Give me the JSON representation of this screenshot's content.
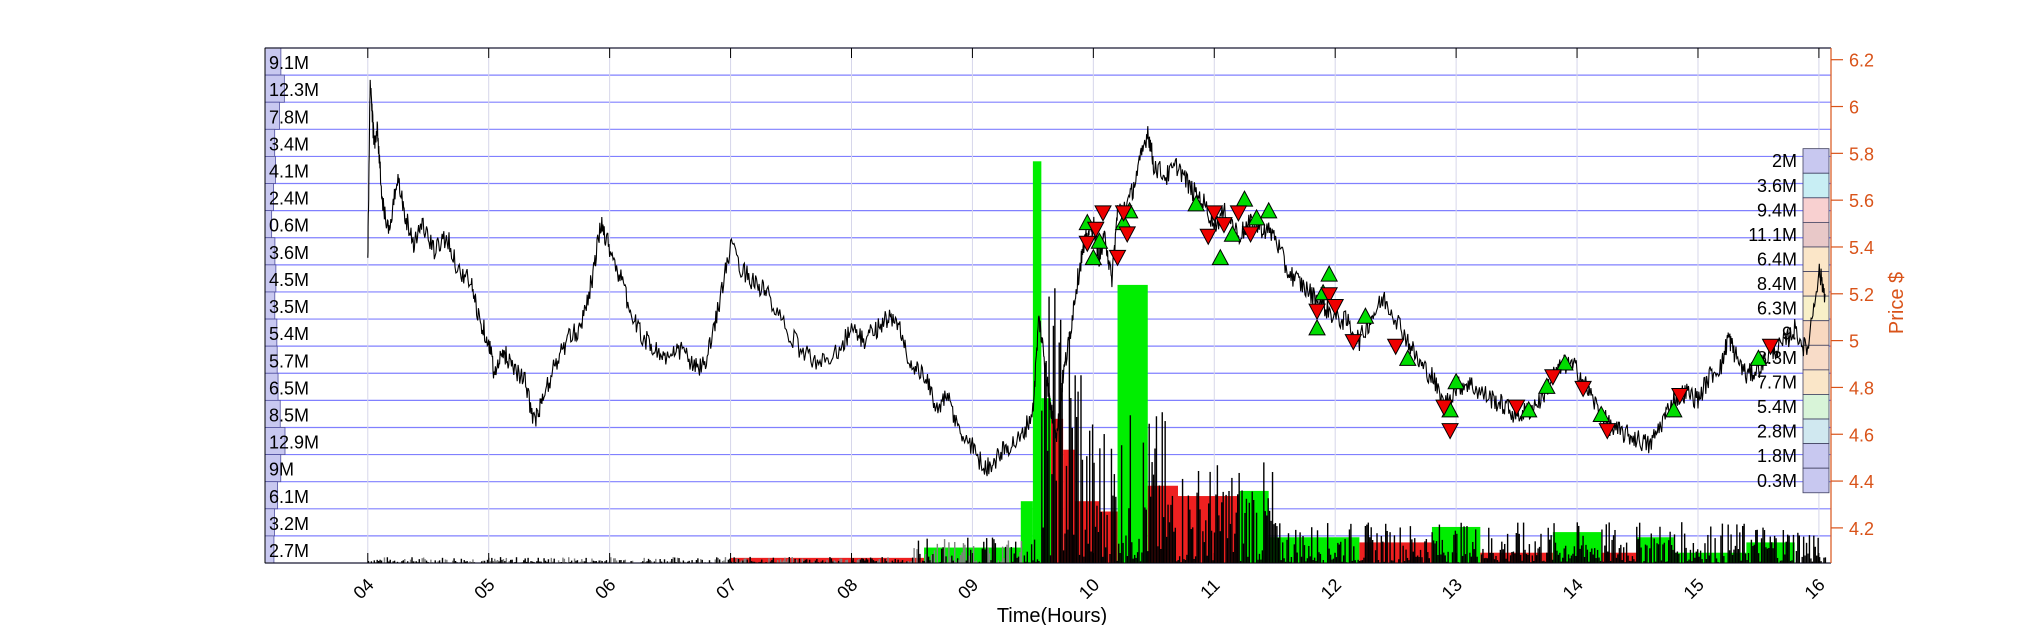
{
  "chart_data": {
    "type": "line",
    "title": "",
    "xlabel": "Time(Hours)",
    "ylabel_right": "Price $",
    "x_tick_labels": [
      "04",
      "05",
      "06",
      "07",
      "08",
      "09",
      "10",
      "11",
      "12",
      "13",
      "14",
      "15",
      "16"
    ],
    "x_range_hours": [
      3.15,
      16.1
    ],
    "y_range_price": [
      4.05,
      6.25
    ],
    "y_ticks_price": [
      "4.2",
      "4.4",
      "4.6",
      "4.8",
      "5",
      "5.2",
      "5.4",
      "5.6",
      "5.8",
      "6",
      "6.2"
    ],
    "grid": "on",
    "colors": {
      "price_line": "#000000",
      "right_axis": "#d95319",
      "grid_blue": "#8080ff",
      "buy_marker": "#00dd00",
      "sell_marker": "#ee0000",
      "volume_green": "#00ee00",
      "volume_red": "#ee2020",
      "volume_black": "#000000",
      "volume_gray": "#808080"
    },
    "price_series": {
      "name": "",
      "points": [
        [
          4.0,
          5.35
        ],
        [
          4.02,
          6.12
        ],
        [
          4.05,
          5.85
        ],
        [
          4.08,
          5.9
        ],
        [
          4.12,
          5.6
        ],
        [
          4.18,
          5.45
        ],
        [
          4.25,
          5.72
        ],
        [
          4.3,
          5.55
        ],
        [
          4.38,
          5.42
        ],
        [
          4.45,
          5.5
        ],
        [
          4.55,
          5.38
        ],
        [
          4.65,
          5.45
        ],
        [
          4.75,
          5.3
        ],
        [
          4.85,
          5.25
        ],
        [
          4.92,
          5.1
        ],
        [
          5.0,
          5.0
        ],
        [
          5.05,
          4.85
        ],
        [
          5.12,
          4.95
        ],
        [
          5.2,
          4.9
        ],
        [
          5.3,
          4.82
        ],
        [
          5.38,
          4.65
        ],
        [
          5.45,
          4.75
        ],
        [
          5.55,
          4.9
        ],
        [
          5.65,
          5.0
        ],
        [
          5.75,
          5.05
        ],
        [
          5.85,
          5.25
        ],
        [
          5.93,
          5.5
        ],
        [
          6.0,
          5.4
        ],
        [
          6.1,
          5.25
        ],
        [
          6.2,
          5.08
        ],
        [
          6.3,
          5.0
        ],
        [
          6.4,
          4.95
        ],
        [
          6.5,
          4.92
        ],
        [
          6.6,
          4.97
        ],
        [
          6.7,
          4.88
        ],
        [
          6.8,
          4.9
        ],
        [
          6.9,
          5.15
        ],
        [
          7.0,
          5.4
        ],
        [
          7.1,
          5.3
        ],
        [
          7.2,
          5.25
        ],
        [
          7.3,
          5.2
        ],
        [
          7.45,
          5.05
        ],
        [
          7.6,
          4.95
        ],
        [
          7.75,
          4.9
        ],
        [
          7.9,
          4.97
        ],
        [
          8.0,
          5.05
        ],
        [
          8.1,
          5.0
        ],
        [
          8.2,
          5.05
        ],
        [
          8.3,
          5.1
        ],
        [
          8.4,
          5.05
        ],
        [
          8.5,
          4.88
        ],
        [
          8.6,
          4.85
        ],
        [
          8.7,
          4.72
        ],
        [
          8.8,
          4.75
        ],
        [
          8.9,
          4.6
        ],
        [
          9.0,
          4.55
        ],
        [
          9.1,
          4.45
        ],
        [
          9.2,
          4.5
        ],
        [
          9.3,
          4.55
        ],
        [
          9.4,
          4.58
        ],
        [
          9.5,
          4.7
        ],
        [
          9.55,
          5.1
        ],
        [
          9.6,
          4.9
        ],
        [
          9.65,
          4.7
        ],
        [
          9.7,
          4.6
        ],
        [
          9.75,
          4.85
        ],
        [
          9.8,
          5.0
        ],
        [
          9.85,
          5.2
        ],
        [
          9.9,
          5.35
        ],
        [
          9.95,
          5.45
        ],
        [
          10.0,
          5.5
        ],
        [
          10.05,
          5.35
        ],
        [
          10.1,
          5.45
        ],
        [
          10.15,
          5.25
        ],
        [
          10.2,
          5.55
        ],
        [
          10.3,
          5.6
        ],
        [
          10.38,
          5.75
        ],
        [
          10.45,
          5.9
        ],
        [
          10.5,
          5.75
        ],
        [
          10.6,
          5.7
        ],
        [
          10.7,
          5.75
        ],
        [
          10.8,
          5.65
        ],
        [
          10.9,
          5.6
        ],
        [
          11.0,
          5.5
        ],
        [
          11.1,
          5.55
        ],
        [
          11.2,
          5.45
        ],
        [
          11.3,
          5.5
        ],
        [
          11.4,
          5.48
        ],
        [
          11.5,
          5.45
        ],
        [
          11.6,
          5.3
        ],
        [
          11.7,
          5.25
        ],
        [
          11.8,
          5.2
        ],
        [
          11.9,
          5.15
        ],
        [
          12.0,
          5.1
        ],
        [
          12.1,
          5.08
        ],
        [
          12.2,
          5.0
        ],
        [
          12.3,
          5.1
        ],
        [
          12.4,
          5.18
        ],
        [
          12.5,
          5.1
        ],
        [
          12.6,
          5.0
        ],
        [
          12.7,
          4.9
        ],
        [
          12.8,
          4.85
        ],
        [
          12.9,
          4.72
        ],
        [
          13.0,
          4.8
        ],
        [
          13.1,
          4.82
        ],
        [
          13.2,
          4.78
        ],
        [
          13.3,
          4.75
        ],
        [
          13.4,
          4.72
        ],
        [
          13.5,
          4.68
        ],
        [
          13.6,
          4.7
        ],
        [
          13.7,
          4.75
        ],
        [
          13.8,
          4.85
        ],
        [
          13.9,
          4.9
        ],
        [
          14.0,
          4.88
        ],
        [
          14.1,
          4.78
        ],
        [
          14.2,
          4.68
        ],
        [
          14.3,
          4.62
        ],
        [
          14.4,
          4.6
        ],
        [
          14.5,
          4.58
        ],
        [
          14.6,
          4.55
        ],
        [
          14.7,
          4.65
        ],
        [
          14.8,
          4.75
        ],
        [
          14.9,
          4.78
        ],
        [
          15.0,
          4.75
        ],
        [
          15.1,
          4.85
        ],
        [
          15.2,
          4.9
        ],
        [
          15.25,
          5.02
        ],
        [
          15.3,
          4.95
        ],
        [
          15.4,
          4.85
        ],
        [
          15.5,
          4.88
        ],
        [
          15.6,
          4.95
        ],
        [
          15.7,
          4.98
        ],
        [
          15.8,
          5.05
        ],
        [
          15.9,
          4.95
        ],
        [
          16.0,
          5.3
        ],
        [
          16.05,
          5.2
        ]
      ]
    },
    "buy_signals": [
      [
        9.95,
        5.5
      ],
      [
        10.0,
        5.35
      ],
      [
        10.05,
        5.42
      ],
      [
        10.25,
        5.5
      ],
      [
        10.3,
        5.55
      ],
      [
        10.85,
        5.58
      ],
      [
        11.05,
        5.35
      ],
      [
        11.15,
        5.45
      ],
      [
        11.25,
        5.6
      ],
      [
        11.35,
        5.52
      ],
      [
        11.45,
        5.55
      ],
      [
        11.85,
        5.05
      ],
      [
        11.9,
        5.2
      ],
      [
        11.95,
        5.28
      ],
      [
        12.25,
        5.1
      ],
      [
        12.6,
        4.92
      ],
      [
        12.95,
        4.7
      ],
      [
        13.0,
        4.82
      ],
      [
        13.6,
        4.7
      ],
      [
        13.75,
        4.8
      ],
      [
        13.9,
        4.9
      ],
      [
        14.2,
        4.68
      ],
      [
        14.8,
        4.7
      ],
      [
        15.5,
        4.92
      ]
    ],
    "sell_signals": [
      [
        9.95,
        5.42
      ],
      [
        10.02,
        5.48
      ],
      [
        10.08,
        5.55
      ],
      [
        10.2,
        5.36
      ],
      [
        10.25,
        5.55
      ],
      [
        10.28,
        5.46
      ],
      [
        10.95,
        5.45
      ],
      [
        11.0,
        5.55
      ],
      [
        11.08,
        5.5
      ],
      [
        11.2,
        5.55
      ],
      [
        11.3,
        5.46
      ],
      [
        11.85,
        5.13
      ],
      [
        11.95,
        5.2
      ],
      [
        12.0,
        5.15
      ],
      [
        12.15,
        5.0
      ],
      [
        12.5,
        4.98
      ],
      [
        12.9,
        4.72
      ],
      [
        12.95,
        4.62
      ],
      [
        13.5,
        4.72
      ],
      [
        13.8,
        4.85
      ],
      [
        14.05,
        4.8
      ],
      [
        14.25,
        4.62
      ],
      [
        14.85,
        4.77
      ],
      [
        15.6,
        4.98
      ]
    ],
    "volume_bars": [
      {
        "x0": 7.0,
        "x1": 8.6,
        "h": 0.01,
        "color": "red"
      },
      {
        "x0": 8.6,
        "x1": 9.4,
        "h": 0.03,
        "color": "green"
      },
      {
        "x0": 9.4,
        "x1": 9.5,
        "h": 0.12,
        "color": "green"
      },
      {
        "x0": 9.5,
        "x1": 9.57,
        "h": 0.78,
        "color": "green"
      },
      {
        "x0": 9.57,
        "x1": 9.65,
        "h": 0.32,
        "color": "green"
      },
      {
        "x0": 9.65,
        "x1": 9.75,
        "h": 0.28,
        "color": "red"
      },
      {
        "x0": 9.75,
        "x1": 9.85,
        "h": 0.22,
        "color": "red"
      },
      {
        "x0": 9.85,
        "x1": 10.05,
        "h": 0.12,
        "color": "red"
      },
      {
        "x0": 10.05,
        "x1": 10.2,
        "h": 0.1,
        "color": "red"
      },
      {
        "x0": 10.2,
        "x1": 10.45,
        "h": 0.54,
        "color": "green"
      },
      {
        "x0": 10.45,
        "x1": 10.7,
        "h": 0.15,
        "color": "red"
      },
      {
        "x0": 10.7,
        "x1": 11.2,
        "h": 0.13,
        "color": "red"
      },
      {
        "x0": 11.2,
        "x1": 11.45,
        "h": 0.14,
        "color": "green"
      },
      {
        "x0": 11.45,
        "x1": 12.2,
        "h": 0.05,
        "color": "green"
      },
      {
        "x0": 12.2,
        "x1": 12.8,
        "h": 0.04,
        "color": "red"
      },
      {
        "x0": 12.8,
        "x1": 13.2,
        "h": 0.07,
        "color": "green"
      },
      {
        "x0": 13.2,
        "x1": 13.8,
        "h": 0.02,
        "color": "red"
      },
      {
        "x0": 13.8,
        "x1": 14.2,
        "h": 0.06,
        "color": "green"
      },
      {
        "x0": 14.2,
        "x1": 14.5,
        "h": 0.02,
        "color": "red"
      },
      {
        "x0": 14.5,
        "x1": 14.8,
        "h": 0.05,
        "color": "green"
      },
      {
        "x0": 14.8,
        "x1": 15.4,
        "h": 0.02,
        "color": "green"
      },
      {
        "x0": 15.4,
        "x1": 15.8,
        "h": 0.04,
        "color": "green"
      }
    ],
    "left_volume_profile": {
      "labels": [
        "9.1M",
        "12.3M",
        "7.8M",
        "3.4M",
        "4.1M",
        "2.4M",
        "0.6M",
        "3.6M",
        "4.5M",
        "3.5M",
        "5.4M",
        "5.7M",
        "6.5M",
        "8.5M",
        "12.9M",
        "9M",
        "6.1M",
        "3.2M",
        "2.7M"
      ],
      "values_millions": [
        9.1,
        12.3,
        7.8,
        3.4,
        4.1,
        2.4,
        0.6,
        3.6,
        4.5,
        3.5,
        5.4,
        5.7,
        6.5,
        8.5,
        12.9,
        9.0,
        6.1,
        3.2,
        2.7
      ]
    },
    "right_volume_profile": {
      "labels": [
        "2M",
        "3.6M",
        "9.4M",
        "11.1M",
        "6.4M",
        "8.4M",
        "6.3M",
        "9.",
        "8.3M",
        "7.7M",
        "5.4M",
        "2.8M",
        "1.8M",
        "0.3M"
      ],
      "values_millions": [
        2.0,
        3.6,
        9.4,
        11.1,
        6.4,
        8.4,
        6.3,
        9.0,
        8.3,
        7.7,
        5.4,
        2.8,
        1.8,
        0.3
      ],
      "colors": [
        "#c8c8f0",
        "#c8eef4",
        "#f8d0d0",
        "#e8c8c8",
        "#fbe6c8",
        "#fbe0c0",
        "#f8f0c8",
        "#f8d8c0",
        "#f8dcc8",
        "#fae6c8",
        "#d8f4d8",
        "#d0e8f0",
        "#c8c8f0",
        "#c8c8f0"
      ]
    }
  }
}
